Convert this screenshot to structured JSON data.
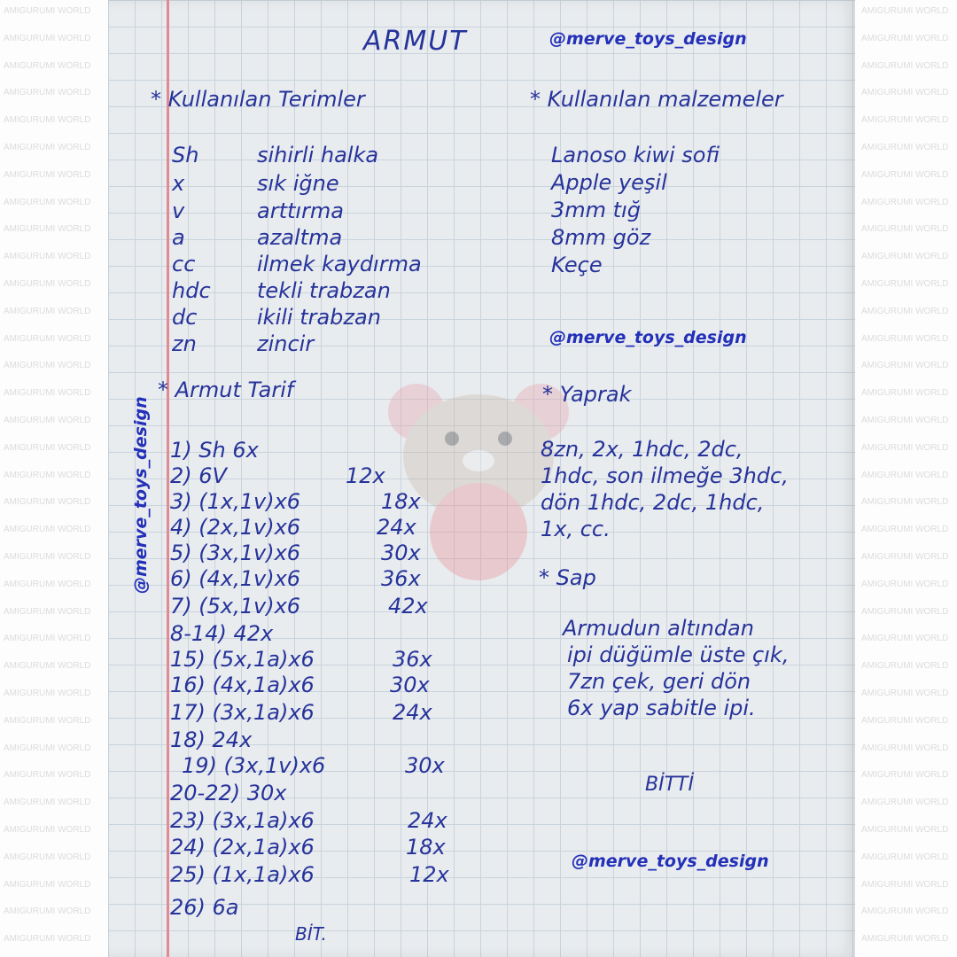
{
  "watermark": "AMIGURUMI WORLD",
  "title": "ARMUT",
  "handle": "@merve_toys_design",
  "terms": {
    "heading": "* Kullanılan Terimler",
    "items": [
      {
        "abbr": "Sh",
        "meaning": "sihirli halka"
      },
      {
        "abbr": "x",
        "meaning": "sık iğne"
      },
      {
        "abbr": "v",
        "meaning": "arttırma"
      },
      {
        "abbr": "a",
        "meaning": "azaltma"
      },
      {
        "abbr": "cc",
        "meaning": "ilmek kaydırma"
      },
      {
        "abbr": "hdc",
        "meaning": "tekli trabzan"
      },
      {
        "abbr": "dc",
        "meaning": "ikili trabzan"
      },
      {
        "abbr": "zn",
        "meaning": "zincir"
      }
    ]
  },
  "recipe": {
    "heading": "* Armut Tarif",
    "rows": [
      {
        "step": "1) Sh 6x",
        "count": ""
      },
      {
        "step": "2) 6V",
        "count": "12x"
      },
      {
        "step": "3) (1x,1v)x6",
        "count": "18x"
      },
      {
        "step": "4) (2x,1v)x6",
        "count": "24x"
      },
      {
        "step": "5) (3x,1v)x6",
        "count": "30x"
      },
      {
        "step": "6) (4x,1v)x6",
        "count": "36x"
      },
      {
        "step": "7) (5x,1v)x6",
        "count": "42x"
      },
      {
        "step": "8-14) 42x",
        "count": ""
      },
      {
        "step": "15) (5x,1a)x6",
        "count": "36x"
      },
      {
        "step": "16) (4x,1a)x6",
        "count": "30x"
      },
      {
        "step": "17) (3x,1a)x6",
        "count": "24x"
      },
      {
        "step": "18) 24x",
        "count": ""
      },
      {
        "step": "19) (3x,1v)x6",
        "count": "30x"
      },
      {
        "step": "20-22) 30x",
        "count": ""
      },
      {
        "step": "23) (3x,1a)x6",
        "count": "24x"
      },
      {
        "step": "24) (2x,1a)x6",
        "count": "18x"
      },
      {
        "step": "25) (1x,1a)x6",
        "count": "12x"
      },
      {
        "step": "26) 6a",
        "count": ""
      }
    ],
    "end": "BİT."
  },
  "materials": {
    "heading": "* Kullanılan malzemeler",
    "items": [
      "Lanoso kiwi sofi",
      "Apple yeşil",
      "3mm tığ",
      "8mm göz",
      "Keçe"
    ]
  },
  "leaf": {
    "heading": "* Yaprak",
    "lines": [
      "8zn, 2x, 1hdc, 2dc,",
      "1hdc, son ilmeğe 3hdc,",
      "dön 1hdc, 2dc, 1hdc,",
      "1x, cc."
    ]
  },
  "stem": {
    "heading": "* Sap",
    "lines": [
      "Armudun altından",
      "ipi düğümle üste çık,",
      "7zn çek, geri dön",
      "6x yap sabitle ipi."
    ]
  },
  "finish": "BİTTİ",
  "colors": {
    "ink": "#26339a",
    "margin": "#e28a92",
    "grid": "#c9d3dc",
    "paper": "#e9ecef"
  }
}
